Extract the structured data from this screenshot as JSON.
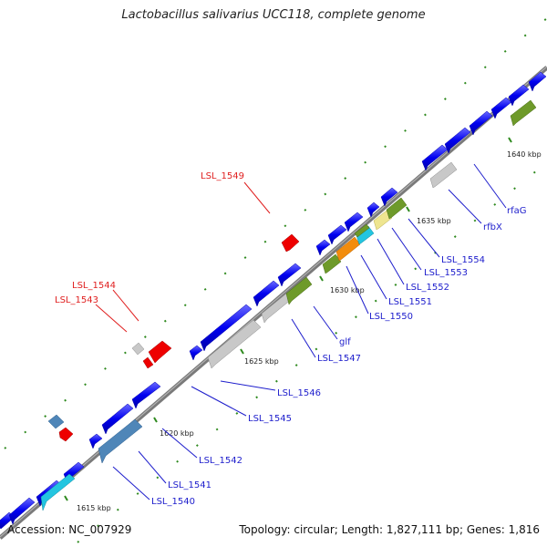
{
  "title": "Lactobacillus salivarius UCC118, complete genome",
  "footer": {
    "accession": "Accession: NC_007929",
    "summary": "Topology: circular; Length: 1,827,111 bp; Genes: 1,816"
  },
  "colors": {
    "backbone": "#7f7f7f",
    "forward_cds": "#0000f0",
    "red_gene": "#ee0000",
    "grey_gene": "#c8c8c8",
    "olive_gene": "#6e9a2a",
    "steelblue_gene": "#4f86b8",
    "cyan_gene": "#23c5e0",
    "orange_gene": "#f28c0c",
    "khaki_gene": "#eee590",
    "tick_green": "#2f8a1f",
    "label_blue": "#1d1dcc",
    "label_red": "#e02020"
  },
  "ticks": [
    {
      "label": "1615 kbp"
    },
    {
      "label": "1620 kbp"
    },
    {
      "label": "1625 kbp"
    },
    {
      "label": "1630 kbp"
    },
    {
      "label": "1635 kbp"
    },
    {
      "label": "1640 kbp"
    }
  ],
  "gene_labels": [
    {
      "text": "LSL_1549",
      "color": "red"
    },
    {
      "text": "LSL_1544",
      "color": "red"
    },
    {
      "text": "LSL_1543",
      "color": "red"
    },
    {
      "text": "rfaG",
      "color": "blue"
    },
    {
      "text": "rfbX",
      "color": "blue"
    },
    {
      "text": "LSL_1554",
      "color": "blue"
    },
    {
      "text": "LSL_1553",
      "color": "blue"
    },
    {
      "text": "LSL_1552",
      "color": "blue"
    },
    {
      "text": "LSL_1551",
      "color": "blue"
    },
    {
      "text": "LSL_1550",
      "color": "blue"
    },
    {
      "text": "glf",
      "color": "blue"
    },
    {
      "text": "LSL_1547",
      "color": "blue"
    },
    {
      "text": "LSL_1546",
      "color": "blue"
    },
    {
      "text": "LSL_1545",
      "color": "blue"
    },
    {
      "text": "LSL_1542",
      "color": "blue"
    },
    {
      "text": "LSL_1541",
      "color": "blue"
    },
    {
      "text": "LSL_1540",
      "color": "blue"
    }
  ]
}
